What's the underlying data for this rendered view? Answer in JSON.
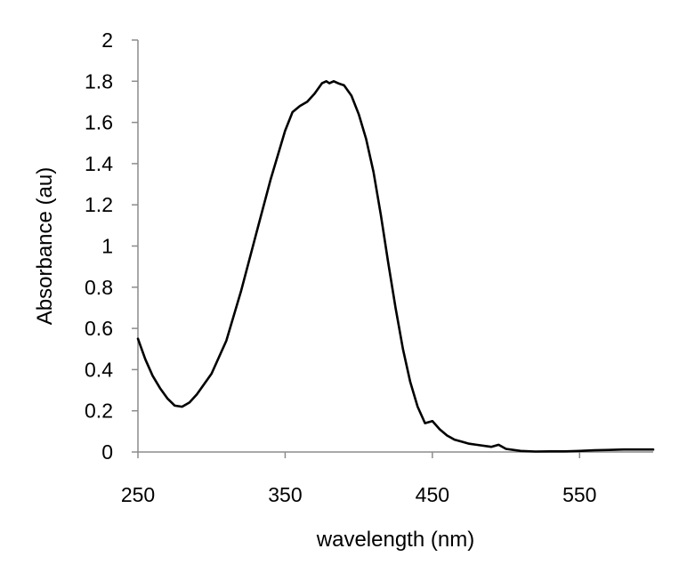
{
  "chart_data": {
    "type": "line",
    "xlabel": "wavelength (nm)",
    "ylabel": "Absorbance (au)",
    "xlim": [
      250,
      600
    ],
    "ylim": [
      0,
      2
    ],
    "xticks": [
      250,
      350,
      450,
      550
    ],
    "yticks": [
      0,
      0.2,
      0.4,
      0.6,
      0.8,
      1,
      1.2,
      1.4,
      1.6,
      1.8,
      2
    ],
    "ytick_labels": [
      "0",
      "0.2",
      "0.4",
      "0.6",
      "0.8",
      "1",
      "1.2",
      "1.4",
      "1.6",
      "1.8",
      "2"
    ],
    "xtick_labels": [
      "250",
      "350",
      "450",
      "550"
    ],
    "grid": false,
    "legend": "none",
    "series": [
      {
        "color": "#000000",
        "x": [
          250,
          255,
          260,
          265,
          270,
          275,
          280,
          285,
          290,
          300,
          310,
          320,
          330,
          340,
          350,
          355,
          360,
          365,
          370,
          375,
          378,
          380,
          383,
          386,
          390,
          395,
          400,
          405,
          410,
          415,
          420,
          425,
          430,
          435,
          440,
          445,
          450,
          455,
          460,
          465,
          470,
          475,
          480,
          490,
          495,
          500,
          510,
          520,
          530,
          540,
          550,
          560,
          570,
          580,
          590,
          600
        ],
        "y": [
          0.55,
          0.45,
          0.37,
          0.31,
          0.26,
          0.225,
          0.22,
          0.24,
          0.28,
          0.38,
          0.54,
          0.78,
          1.05,
          1.32,
          1.56,
          1.65,
          1.68,
          1.7,
          1.74,
          1.79,
          1.8,
          1.79,
          1.8,
          1.79,
          1.78,
          1.73,
          1.64,
          1.52,
          1.36,
          1.15,
          0.92,
          0.7,
          0.5,
          0.34,
          0.22,
          0.14,
          0.15,
          0.11,
          0.08,
          0.06,
          0.05,
          0.04,
          0.035,
          0.025,
          0.035,
          0.015,
          0.005,
          0.002,
          0.003,
          0.003,
          0.005,
          0.008,
          0.01,
          0.012,
          0.012,
          0.012
        ]
      }
    ]
  }
}
